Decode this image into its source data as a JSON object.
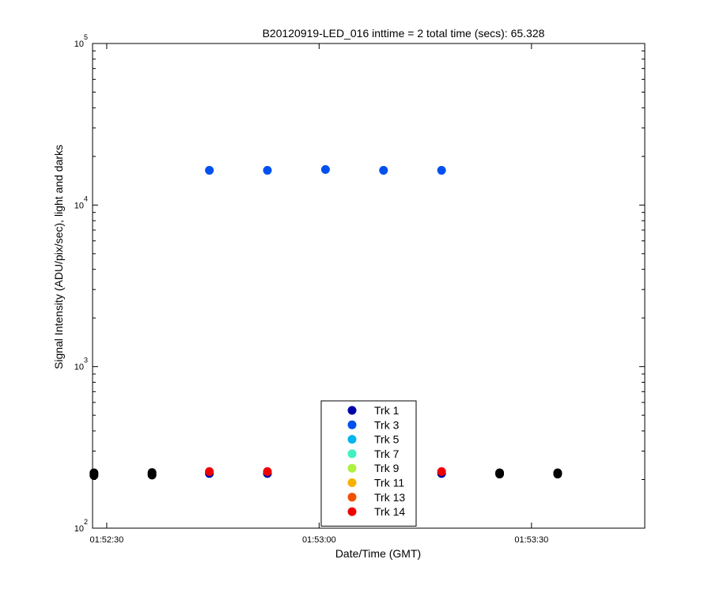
{
  "chart_data": {
    "type": "scatter",
    "title": "B20120919-LED_016 inttime = 2 total time (secs): 65.328",
    "xlabel": "Date/Time (GMT)",
    "ylabel": "Signal Intensity (ADU/pix/sec), light and darks",
    "xlim": [
      "01:52:28",
      "01:53:46"
    ],
    "ylim": [
      100,
      100000
    ],
    "yscale": "log",
    "x_ticks": [
      "01:52:30",
      "01:53:00",
      "01:53:30"
    ],
    "y_ticks": [
      {
        "base": "10",
        "exp": "2",
        "value": 100
      },
      {
        "base": "10",
        "exp": "3",
        "value": 1000
      },
      {
        "base": "10",
        "exp": "4",
        "value": 10000
      },
      {
        "base": "10",
        "exp": "5",
        "value": 100000
      }
    ],
    "grid": false,
    "legend_position": "bottom-center",
    "series": [
      {
        "name": "Trk 1",
        "color": "#0000a8",
        "points": [
          [
            "01:52:44.5",
            218
          ],
          [
            "01:52:52.7",
            218
          ],
          [
            "01:53:17.3",
            218
          ]
        ]
      },
      {
        "name": "Trk 3",
        "color": "#0050f0",
        "points": [
          [
            "01:52:44.5",
            16400
          ],
          [
            "01:52:52.7",
            16400
          ],
          [
            "01:53:00.9",
            16600
          ],
          [
            "01:53:09.1",
            16400
          ],
          [
            "01:53:17.3",
            16400
          ]
        ]
      },
      {
        "name": "Trk 5",
        "color": "#00b4f0",
        "points": []
      },
      {
        "name": "Trk 7",
        "color": "#40f0c0",
        "points": []
      },
      {
        "name": "Trk 9",
        "color": "#b0f040",
        "points": []
      },
      {
        "name": "Trk 11",
        "color": "#f8b000",
        "points": []
      },
      {
        "name": "Trk 13",
        "color": "#f05000",
        "points": []
      },
      {
        "name": "Trk 14",
        "color": "#ee0000",
        "points": [
          [
            "01:52:44.5",
            224
          ],
          [
            "01:52:52.7",
            224
          ],
          [
            "01:53:17.3",
            224
          ]
        ]
      },
      {
        "name": "",
        "color": "#000000",
        "points": [
          [
            "01:52:28.2",
            212
          ],
          [
            "01:52:28.2",
            216
          ],
          [
            "01:52:28.2",
            220
          ],
          [
            "01:52:36.4",
            213
          ],
          [
            "01:52:36.4",
            217
          ],
          [
            "01:52:36.4",
            221
          ],
          [
            "01:53:25.5",
            216
          ],
          [
            "01:53:25.5",
            220
          ],
          [
            "01:53:33.7",
            216
          ],
          [
            "01:53:33.7",
            220
          ]
        ]
      }
    ]
  }
}
